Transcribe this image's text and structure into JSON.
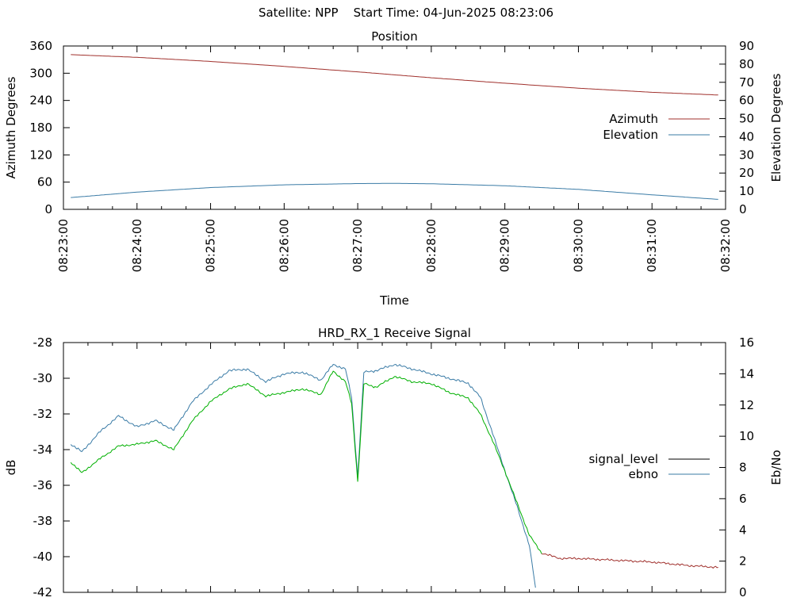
{
  "page_title": "Satellite: NPP    Start Time: 04-Jun-2025 08:23:06",
  "chart_data": [
    {
      "type": "line",
      "title": "Position",
      "xlabel": "Time",
      "ylabel": "Azimuth Degrees",
      "y2label": "Elevation Degrees",
      "x_ticks": [
        "08:23:00",
        "08:24:00",
        "08:25:00",
        "08:26:00",
        "08:27:00",
        "08:28:00",
        "08:29:00",
        "08:30:00",
        "08:31:00",
        "08:32:00"
      ],
      "xlim": [
        "08:23:00",
        "08:32:00"
      ],
      "ylim": [
        0,
        360
      ],
      "y_ticks": [
        "0",
        "60",
        "120",
        "180",
        "240",
        "300",
        "360"
      ],
      "y2lim": [
        0,
        90
      ],
      "y2_ticks": [
        "0",
        "10",
        "20",
        "30",
        "40",
        "50",
        "60",
        "70",
        "80",
        "90"
      ],
      "legend_position": "right",
      "series": [
        {
          "name": "Azimuth",
          "axis": "y",
          "color": "#a0302c",
          "x": [
            "08:23:06",
            "08:24:00",
            "08:25:00",
            "08:26:00",
            "08:27:00",
            "08:28:00",
            "08:29:00",
            "08:30:00",
            "08:31:00",
            "08:31:54"
          ],
          "values": [
            341,
            335,
            326,
            315,
            303,
            290,
            278,
            267,
            258,
            252
          ]
        },
        {
          "name": "Elevation",
          "axis": "y2",
          "color": "#3a7ba6",
          "x": [
            "08:23:06",
            "08:24:00",
            "08:25:00",
            "08:26:00",
            "08:27:00",
            "08:27:30",
            "08:28:00",
            "08:29:00",
            "08:30:00",
            "08:31:00",
            "08:31:54"
          ],
          "values": [
            6.5,
            9.5,
            12,
            13.5,
            14.2,
            14.3,
            14.1,
            13,
            11,
            8,
            5.5
          ]
        }
      ]
    },
    {
      "type": "line",
      "title": "HRD_RX_1 Receive Signal",
      "xlabel": "",
      "ylabel": "dB",
      "y2label": "Eb/No",
      "xlim": [
        "08:23:00",
        "08:32:00"
      ],
      "ylim": [
        -42,
        -28
      ],
      "y_ticks": [
        "-42",
        "-40",
        "-38",
        "-36",
        "-34",
        "-32",
        "-30",
        "-28"
      ],
      "y2lim": [
        0,
        16
      ],
      "y2_ticks": [
        "0",
        "2",
        "4",
        "6",
        "8",
        "10",
        "12",
        "14",
        "16"
      ],
      "legend_position": "right",
      "series": [
        {
          "name": "signal_level",
          "axis": "y",
          "color": "#00b000",
          "color_low": "#a0302c",
          "x": [
            "08:23:06",
            "08:23:15",
            "08:23:30",
            "08:23:45",
            "08:24:00",
            "08:24:15",
            "08:24:30",
            "08:24:45",
            "08:25:00",
            "08:25:15",
            "08:25:30",
            "08:25:45",
            "08:26:00",
            "08:26:15",
            "08:26:30",
            "08:26:40",
            "08:26:50",
            "08:26:55",
            "08:27:00",
            "08:27:05",
            "08:27:15",
            "08:27:30",
            "08:27:45",
            "08:28:00",
            "08:28:15",
            "08:28:30",
            "08:28:40",
            "08:28:50",
            "08:29:00",
            "08:29:10",
            "08:29:20",
            "08:29:30",
            "08:29:45",
            "08:30:00",
            "08:30:30",
            "08:31:00",
            "08:31:30",
            "08:31:54"
          ],
          "values": [
            -34.7,
            -35.3,
            -34.5,
            -33.8,
            -33.7,
            -33.5,
            -34.0,
            -32.4,
            -31.3,
            -30.6,
            -30.3,
            -31.0,
            -30.8,
            -30.6,
            -30.9,
            -29.6,
            -30.2,
            -31.4,
            -35.8,
            -30.3,
            -30.5,
            -29.9,
            -30.2,
            -30.3,
            -30.8,
            -31.1,
            -32.0,
            -33.5,
            -35.2,
            -37.0,
            -38.8,
            -39.8,
            -40.1,
            -40.1,
            -40.2,
            -40.3,
            -40.5,
            -40.6
          ]
        },
        {
          "name": "ebno",
          "axis": "y2",
          "color": "#3a7ba6",
          "x": [
            "08:23:06",
            "08:23:15",
            "08:23:30",
            "08:23:45",
            "08:24:00",
            "08:24:15",
            "08:24:30",
            "08:24:45",
            "08:25:00",
            "08:25:15",
            "08:25:30",
            "08:25:45",
            "08:26:00",
            "08:26:15",
            "08:26:30",
            "08:26:40",
            "08:26:50",
            "08:26:55",
            "08:27:00",
            "08:27:05",
            "08:27:15",
            "08:27:30",
            "08:27:45",
            "08:28:00",
            "08:28:15",
            "08:28:30",
            "08:28:40",
            "08:28:50",
            "08:29:00",
            "08:29:10",
            "08:29:20",
            "08:29:25"
          ],
          "values": [
            9.5,
            9.0,
            10.3,
            11.3,
            10.6,
            11.0,
            10.4,
            12.2,
            13.3,
            14.2,
            14.3,
            13.5,
            14.0,
            14.1,
            13.6,
            14.6,
            14.3,
            12.5,
            7.4,
            14.1,
            14.2,
            14.6,
            14.3,
            14.0,
            13.7,
            13.4,
            12.5,
            10.2,
            7.8,
            5.5,
            3.0,
            0.3
          ]
        }
      ]
    }
  ]
}
